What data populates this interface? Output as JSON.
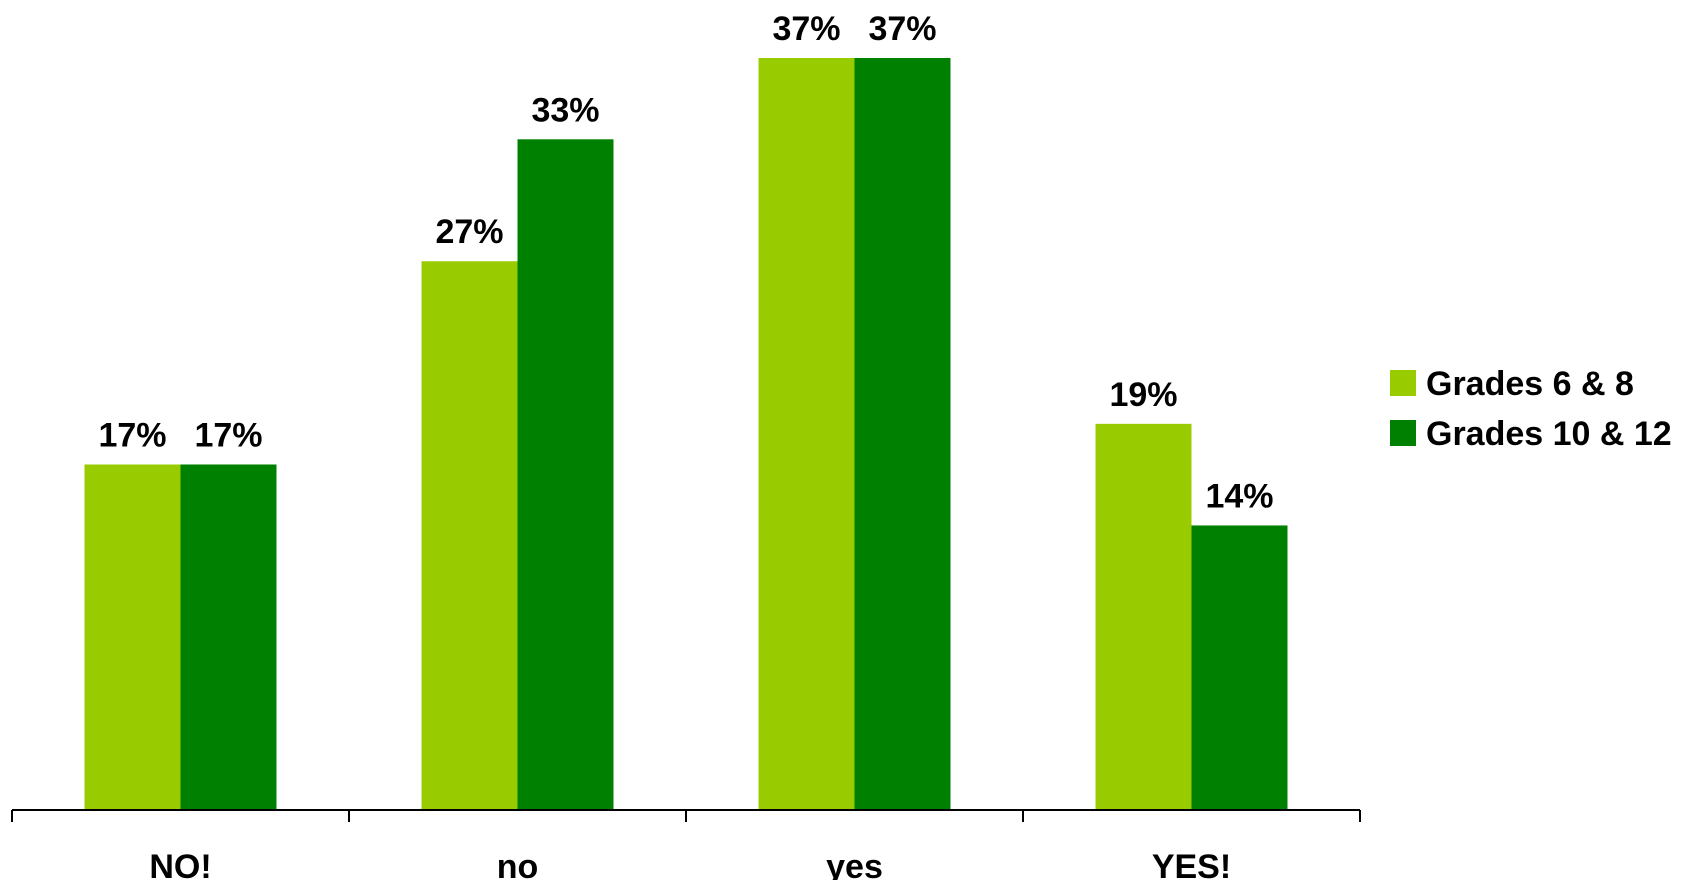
{
  "chart_data": {
    "type": "bar",
    "categories": [
      "NO!",
      "no",
      "yes",
      "YES!"
    ],
    "series": [
      {
        "name": "Grades 6 & 8",
        "values": [
          17,
          27,
          37,
          19
        ],
        "color": "#99CC00"
      },
      {
        "name": "Grades 10 & 12",
        "values": [
          17,
          33,
          37,
          14
        ],
        "color": "#008000"
      }
    ],
    "value_suffix": "%",
    "ylim": [
      0,
      37
    ],
    "grid": false,
    "legend_position": "right"
  }
}
